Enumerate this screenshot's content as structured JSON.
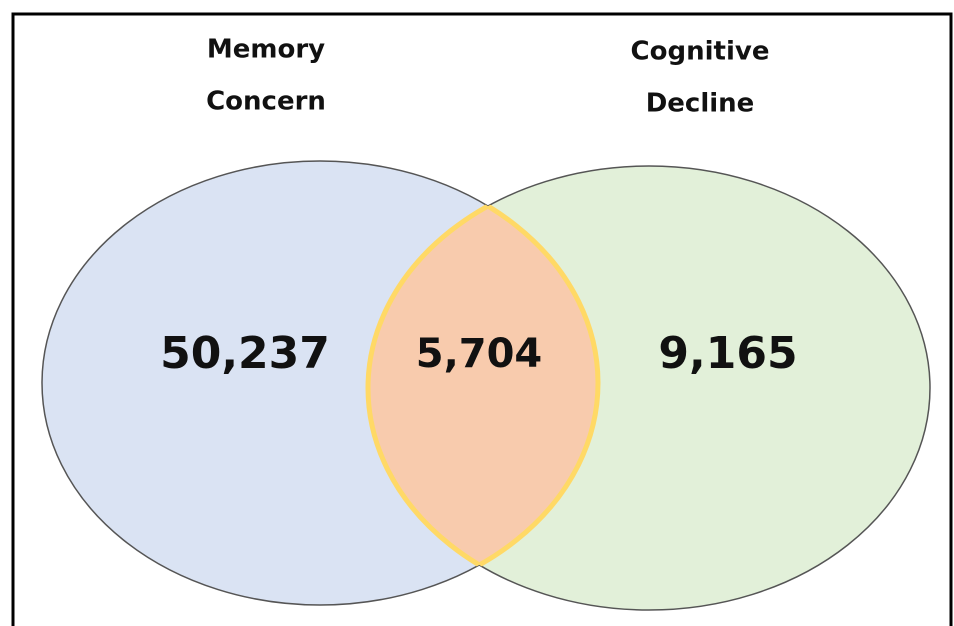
{
  "sets": [
    {
      "label": [
        "Memory",
        "Concern"
      ],
      "count": "50,237"
    },
    {
      "label": [
        "Cognitive",
        "Decline"
      ],
      "count": "9,165"
    }
  ],
  "intersection": {
    "count": "5,704"
  }
}
